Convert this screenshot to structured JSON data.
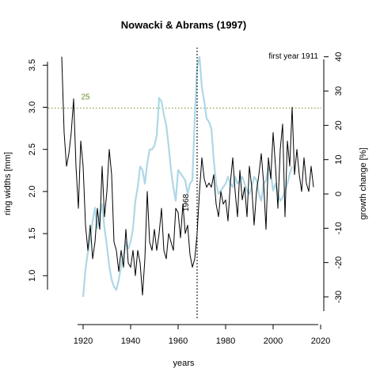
{
  "chart_data": {
    "type": "line",
    "title": "Nowacki & Abrams (1997)",
    "xlabel": "years",
    "ylabel": "ring widths [mm]",
    "y2label": "growth change [%]",
    "xlim": [
      1908,
      2020
    ],
    "ylim": [
      0.72,
      3.71
    ],
    "y2lim": [
      -30.7,
      42.7
    ],
    "x_ticks": [
      "1920",
      "1940",
      "1960",
      "1980",
      "2000",
      "2020"
    ],
    "y_ticks": [
      "1.0",
      "1.5",
      "2.0",
      "2.5",
      "3.0",
      "3.5"
    ],
    "y2_ticks": [
      "-30",
      "-20",
      "-10",
      "0",
      "10",
      "20",
      "30",
      "40"
    ],
    "threshold_value": 25,
    "threshold_label": "25",
    "vline_year": 1968,
    "vline_label": "1968",
    "annotation": "first year 1911",
    "grid": false,
    "colors": {
      "ring_widths": "#000000",
      "growth_change": "#add8e6",
      "threshold": "#6b8e23",
      "vline": "#000000"
    },
    "series": [
      {
        "axis": "left",
        "x": [
          1911,
          1912,
          1913,
          1914,
          1915,
          1916,
          1917,
          1918,
          1919,
          1920,
          1921,
          1922,
          1923,
          1924,
          1925,
          1926,
          1927,
          1928,
          1929,
          1930,
          1931,
          1932,
          1933,
          1934,
          1935,
          1936,
          1937,
          1938,
          1939,
          1940,
          1941,
          1942,
          1943,
          1944,
          1945,
          1946,
          1947,
          1948,
          1949,
          1950,
          1951,
          1952,
          1953,
          1954,
          1955,
          1956,
          1957,
          1958,
          1959,
          1960,
          1961,
          1962,
          1963,
          1964,
          1965,
          1966,
          1967,
          1968,
          1969,
          1970,
          1971,
          1972,
          1973,
          1974,
          1975,
          1976,
          1977,
          1978,
          1979,
          1980,
          1981,
          1982,
          1983,
          1984,
          1985,
          1986,
          1987,
          1988,
          1989,
          1990,
          1991,
          1992,
          1993,
          1994,
          1995,
          1996,
          1997,
          1998,
          1999,
          2000,
          2001,
          2002,
          2003,
          2004,
          2005,
          2006,
          2007,
          2008,
          2009,
          2010,
          2011,
          2012,
          2013,
          2014,
          2015,
          2016,
          2017
        ],
        "values": [
          3.6,
          2.7,
          2.3,
          2.45,
          2.7,
          3.1,
          2.3,
          1.8,
          2.6,
          2.3,
          1.6,
          1.3,
          1.6,
          1.2,
          1.4,
          1.8,
          1.55,
          2.3,
          1.7,
          2.0,
          2.5,
          2.2,
          1.4,
          1.3,
          1.05,
          1.3,
          1.1,
          1.55,
          1.15,
          1.1,
          1.3,
          1.0,
          1.3,
          1.15,
          0.77,
          1.2,
          2.0,
          1.4,
          1.3,
          1.55,
          1.3,
          1.5,
          1.8,
          1.3,
          1.2,
          1.5,
          1.4,
          1.3,
          1.8,
          1.75,
          1.45,
          1.85,
          1.5,
          1.6,
          1.25,
          1.1,
          1.2,
          1.5,
          2.0,
          2.4,
          2.15,
          2.05,
          2.1,
          2.05,
          2.2,
          1.85,
          1.7,
          2.0,
          1.85,
          1.9,
          1.65,
          2.1,
          2.4,
          2.0,
          1.7,
          2.25,
          1.9,
          2.05,
          1.7,
          2.3,
          2.05,
          1.6,
          2.0,
          2.2,
          2.45,
          2.1,
          1.55,
          2.4,
          2.15,
          2.7,
          2.3,
          1.8,
          2.5,
          2.8,
          1.7,
          2.6,
          2.3,
          3.0,
          2.2,
          2.5,
          2.2,
          2.0,
          2.4,
          2.1,
          2.0,
          2.3,
          2.05
        ],
        "name": ""
      },
      {
        "axis": "right",
        "x": [
          1920,
          1921,
          1922,
          1923,
          1924,
          1925,
          1926,
          1927,
          1928,
          1929,
          1930,
          1931,
          1932,
          1933,
          1934,
          1935,
          1936,
          1937,
          1938,
          1939,
          1940,
          1941,
          1942,
          1943,
          1944,
          1945,
          1946,
          1947,
          1948,
          1949,
          1950,
          1951,
          1952,
          1953,
          1954,
          1955,
          1956,
          1957,
          1958,
          1959,
          1960,
          1961,
          1962,
          1963,
          1964,
          1965,
          1966,
          1967,
          1968,
          1969,
          1970,
          1971,
          1972,
          1973,
          1974,
          1975,
          1976,
          1977,
          1978,
          1979,
          1980,
          1981,
          1982,
          1983,
          1984,
          1985,
          1986,
          1987,
          1988,
          1989,
          1990,
          1991,
          1992,
          1993,
          1994,
          1995,
          1996,
          1997,
          1998,
          1999,
          2000,
          2001,
          2002,
          2003,
          2004,
          2005,
          2006,
          2007,
          2008
        ],
        "values": [
          -30,
          -22,
          -17,
          -13,
          -8,
          -4,
          -10,
          -6,
          -3,
          -10,
          -15,
          -21,
          -25,
          -27,
          -28,
          -25,
          -21,
          -18,
          -14,
          -16,
          -14,
          -10,
          -2,
          2,
          8,
          7,
          3,
          9,
          13,
          13,
          14,
          17,
          28,
          27,
          23,
          20,
          14,
          7,
          2,
          -2,
          7,
          6,
          5,
          4,
          0,
          3,
          4,
          22,
          37,
          40,
          31,
          27,
          22,
          21,
          19,
          10,
          3,
          0,
          1,
          2,
          3,
          5,
          3,
          2,
          5,
          3,
          4,
          5,
          3,
          1,
          0,
          2,
          5,
          4,
          0,
          -2,
          3,
          4,
          8,
          6,
          1,
          3,
          0,
          -2,
          -1,
          1,
          3,
          6,
          8
        ],
        "name": ""
      }
    ]
  }
}
